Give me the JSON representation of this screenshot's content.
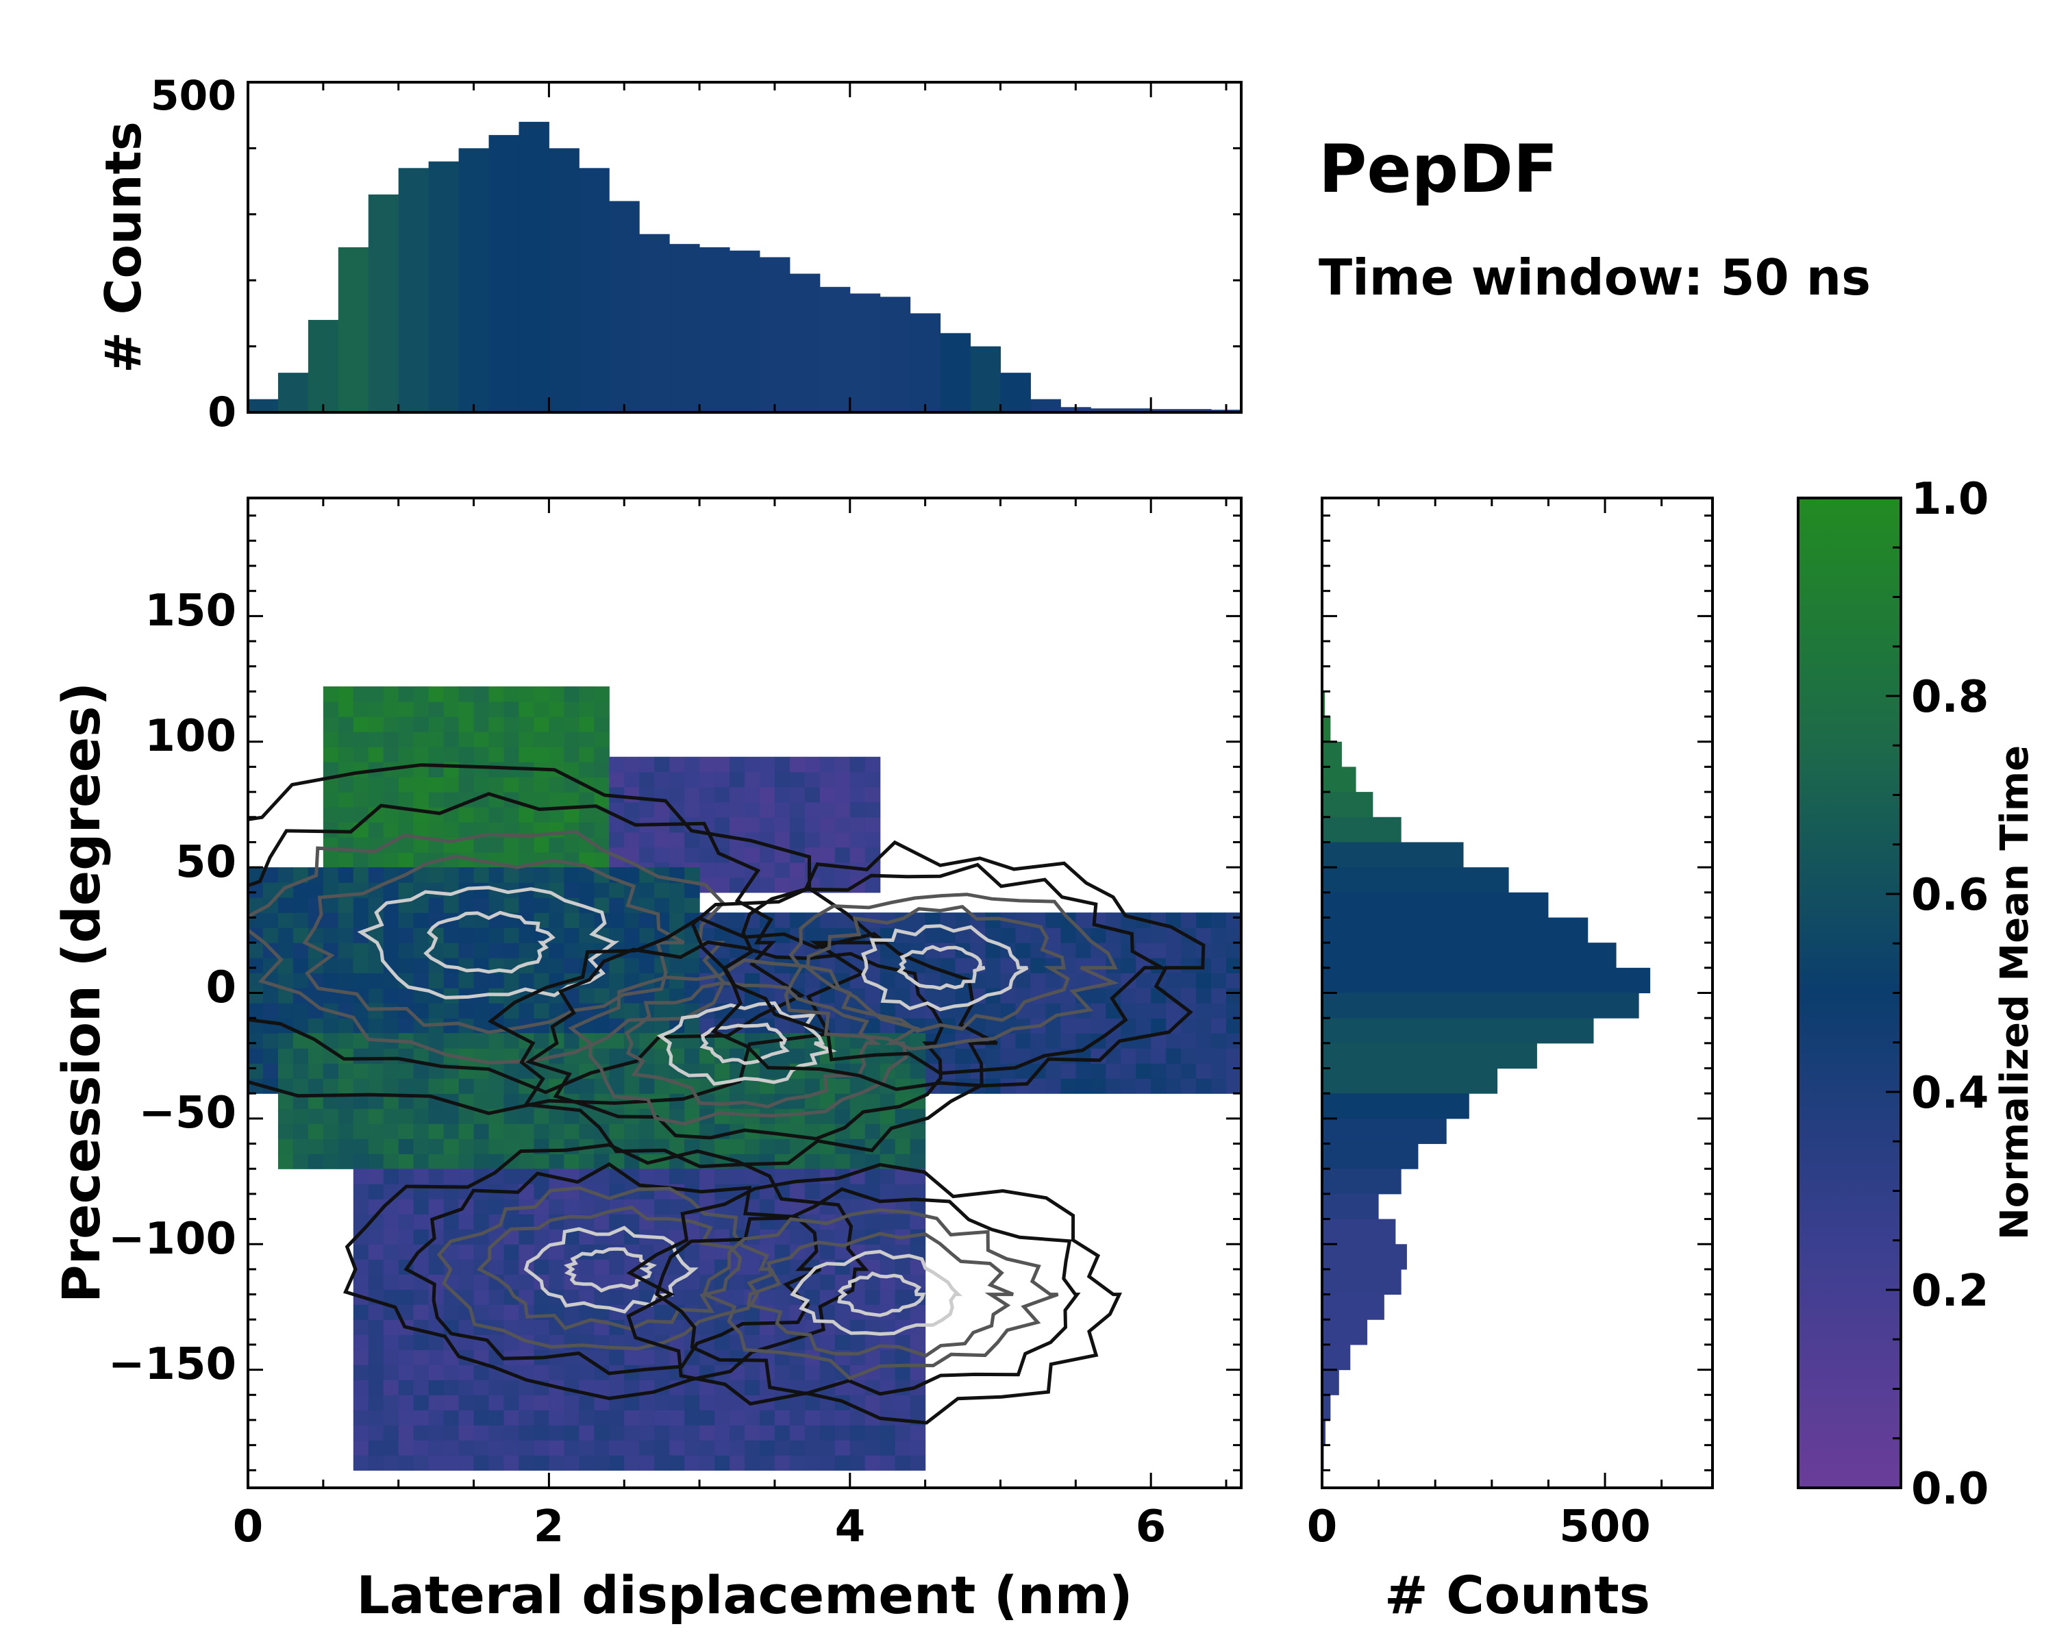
{
  "figure": {
    "title": "PepDF",
    "subtitle": "Time window: 50 ns"
  },
  "colors": {
    "cmap_low": "#6a3d9a",
    "cmap_mid": "#0b3d6e",
    "cmap_high": "#228b22",
    "contour_dark": "#111111",
    "contour_mid": "#555555",
    "contour_light": "#cccccc"
  },
  "chart_data": [
    {
      "id": "top-histogram",
      "type": "bar",
      "title": "",
      "xlabel": "",
      "ylabel": "# Counts",
      "xlim": [
        0,
        6.6
      ],
      "ylim": [
        0,
        500
      ],
      "yticks": [
        "0",
        "500"
      ],
      "bin_width": 0.2,
      "bins": [
        0.1,
        0.3,
        0.5,
        0.7,
        0.9,
        1.1,
        1.3,
        1.5,
        1.7,
        1.9,
        2.1,
        2.3,
        2.5,
        2.7,
        2.9,
        3.1,
        3.3,
        3.5,
        3.7,
        3.9,
        4.1,
        4.3,
        4.5,
        4.7,
        4.9,
        5.1,
        5.3,
        5.5,
        5.7,
        5.9,
        6.1,
        6.3,
        6.5
      ],
      "values": [
        20,
        60,
        140,
        250,
        330,
        370,
        380,
        400,
        420,
        440,
        400,
        370,
        320,
        270,
        255,
        250,
        245,
        235,
        210,
        190,
        180,
        175,
        150,
        120,
        100,
        60,
        20,
        8,
        6,
        6,
        5,
        5,
        4
      ],
      "color_values": [
        0.55,
        0.62,
        0.68,
        0.72,
        0.66,
        0.6,
        0.56,
        0.52,
        0.5,
        0.5,
        0.49,
        0.48,
        0.47,
        0.46,
        0.46,
        0.45,
        0.45,
        0.44,
        0.44,
        0.43,
        0.43,
        0.44,
        0.45,
        0.5,
        0.55,
        0.5,
        0.45,
        0.4,
        0.4,
        0.4,
        0.4,
        0.4,
        0.4
      ]
    },
    {
      "id": "joint-heatmap",
      "type": "heatmap",
      "title": "",
      "xlabel": "Lateral displacement (nm)",
      "ylabel": "Precession (degrees)",
      "xlim": [
        0,
        6.6
      ],
      "ylim": [
        -197,
        197
      ],
      "xticks": [
        "0",
        "2",
        "4",
        "6"
      ],
      "yticks": [
        "150",
        "100",
        "50",
        "0",
        "−50",
        "−100",
        "−150"
      ],
      "regions": [
        {
          "label": "upper",
          "x_range": [
            0.5,
            2.4
          ],
          "y_range": [
            50,
            120
          ],
          "normalized_mean_time": 0.85
        },
        {
          "label": "upper-right",
          "x_range": [
            2.4,
            4.2
          ],
          "y_range": [
            40,
            90
          ],
          "normalized_mean_time": 0.25
        },
        {
          "label": "central-left",
          "x_range": [
            0,
            3.0
          ],
          "y_range": [
            -40,
            50
          ],
          "normalized_mean_time": 0.55
        },
        {
          "label": "central-right",
          "x_range": [
            3.0,
            6.6
          ],
          "y_range": [
            -40,
            30
          ],
          "normalized_mean_time": 0.4
        },
        {
          "label": "mid-lower-green",
          "x_range": [
            0.2,
            4.5
          ],
          "y_range": [
            -70,
            -20
          ],
          "normalized_mean_time": 0.7
        },
        {
          "label": "lower",
          "x_range": [
            0.7,
            4.5
          ],
          "y_range": [
            -190,
            -70
          ],
          "normalized_mean_time": 0.3
        }
      ],
      "contour_levels": 6
    },
    {
      "id": "right-histogram",
      "type": "bar",
      "orientation": "horizontal",
      "title": "",
      "xlabel": "# Counts",
      "ylabel": "",
      "xlim": [
        0,
        690
      ],
      "ylim": [
        -197,
        197
      ],
      "xticks": [
        "0",
        "500"
      ],
      "bin_width": 10,
      "bins": [
        115,
        105,
        95,
        85,
        75,
        65,
        55,
        45,
        35,
        25,
        15,
        5,
        -5,
        -15,
        -25,
        -35,
        -45,
        -55,
        -65,
        -75,
        -85,
        -95,
        -105,
        -115,
        -125,
        -135,
        -145,
        -155,
        -165,
        -175,
        -185
      ],
      "values": [
        5,
        15,
        35,
        60,
        90,
        140,
        250,
        330,
        400,
        470,
        520,
        580,
        560,
        480,
        380,
        310,
        260,
        220,
        170,
        140,
        100,
        130,
        150,
        140,
        110,
        80,
        50,
        30,
        15,
        6,
        3
      ],
      "color_values": [
        0.9,
        0.85,
        0.8,
        0.8,
        0.75,
        0.7,
        0.55,
        0.52,
        0.5,
        0.5,
        0.5,
        0.5,
        0.55,
        0.6,
        0.62,
        0.62,
        0.5,
        0.45,
        0.45,
        0.4,
        0.35,
        0.3,
        0.3,
        0.3,
        0.28,
        0.28,
        0.28,
        0.3,
        0.3,
        0.3,
        0.3
      ]
    },
    {
      "id": "colorbar",
      "type": "colorbar",
      "label": "Normalized Mean Time",
      "range": [
        0,
        1
      ],
      "ticks": [
        "0.0",
        "0.2",
        "0.4",
        "0.6",
        "0.8",
        "1.0"
      ]
    }
  ]
}
